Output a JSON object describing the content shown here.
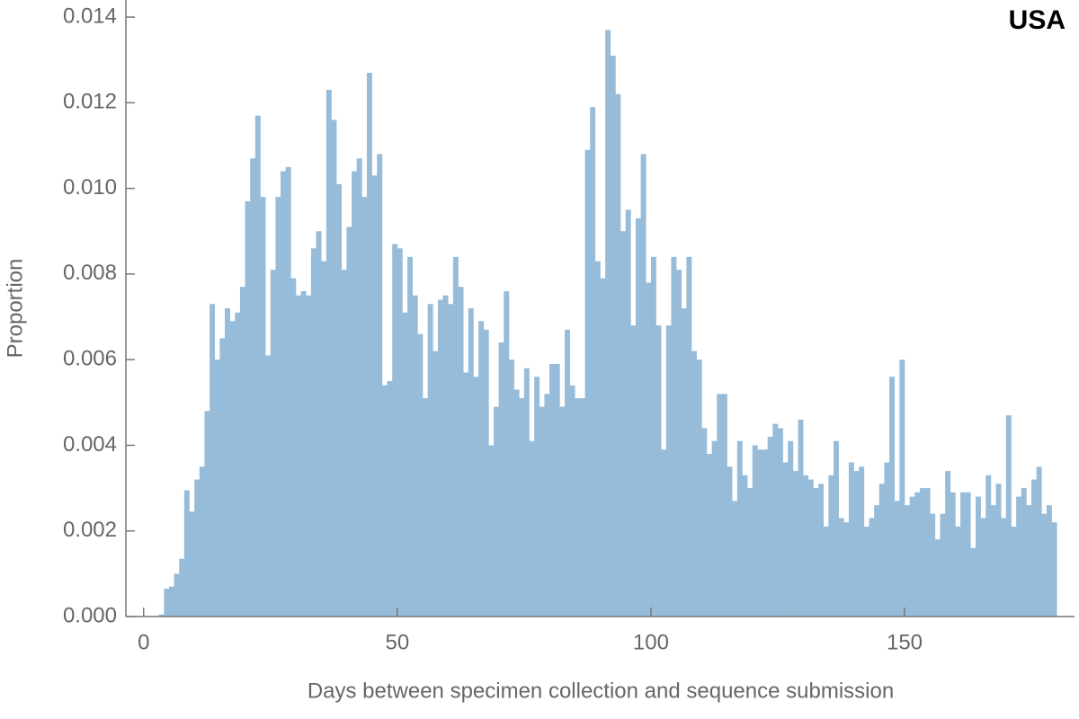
{
  "chart_data": {
    "type": "histogram",
    "title": "USA",
    "x_label": "Days between specimen collection and sequence submission",
    "y_label": "Proportion",
    "color": "#97bcd9",
    "bins": [
      3,
      4,
      5,
      6,
      7,
      8,
      9,
      10,
      11,
      12,
      13,
      14,
      15,
      16,
      17,
      18,
      19,
      20,
      21,
      22,
      23,
      24,
      25,
      26,
      27,
      28,
      29,
      30,
      31,
      32,
      33,
      34,
      35,
      36,
      37,
      38,
      39,
      40,
      41,
      42,
      43,
      44,
      45,
      46,
      47,
      48,
      49,
      50,
      51,
      52,
      53,
      54,
      55,
      56,
      57,
      58,
      59,
      60,
      61,
      62,
      63,
      64,
      65,
      66,
      67,
      68,
      69,
      70,
      71,
      72,
      73,
      74,
      75,
      76,
      77,
      78,
      79,
      80,
      81,
      82,
      83,
      84,
      85,
      86,
      87,
      88,
      89,
      90,
      91,
      92,
      93,
      94,
      95,
      96,
      97,
      98,
      99,
      100,
      101,
      102,
      103,
      104,
      105,
      106,
      107,
      108,
      109,
      110,
      111,
      112,
      113,
      114,
      115,
      116,
      117,
      118,
      119,
      120,
      121,
      122,
      123,
      124,
      125,
      126,
      127,
      128,
      129,
      130,
      131,
      132,
      133,
      134,
      135,
      136,
      137,
      138,
      139,
      140,
      141,
      142,
      143,
      144,
      145,
      146,
      147,
      148,
      149,
      150,
      151,
      152,
      153,
      154,
      155,
      156,
      157,
      158,
      159,
      160,
      161,
      162,
      163,
      164,
      165,
      166,
      167,
      168,
      169,
      170,
      171,
      172,
      173,
      174,
      175,
      176,
      177,
      178,
      179,
      180
    ],
    "values": [
      5e-05,
      0.00065,
      0.0007,
      0.001,
      0.00135,
      0.00295,
      0.00245,
      0.0032,
      0.0035,
      0.0048,
      0.0073,
      0.006,
      0.0065,
      0.0072,
      0.0069,
      0.0071,
      0.0077,
      0.0097,
      0.0107,
      0.0117,
      0.0098,
      0.0061,
      0.0081,
      0.0098,
      0.0104,
      0.0105,
      0.0079,
      0.0075,
      0.0076,
      0.0075,
      0.0086,
      0.009,
      0.0083,
      0.0123,
      0.0116,
      0.0101,
      0.0081,
      0.0091,
      0.0104,
      0.0107,
      0.0098,
      0.0127,
      0.0103,
      0.0108,
      0.0054,
      0.0055,
      0.0087,
      0.0086,
      0.0071,
      0.0084,
      0.0075,
      0.0066,
      0.0051,
      0.0073,
      0.0062,
      0.0074,
      0.0075,
      0.0073,
      0.0084,
      0.0077,
      0.0057,
      0.0072,
      0.0056,
      0.0069,
      0.0067,
      0.004,
      0.0049,
      0.0064,
      0.0076,
      0.006,
      0.0053,
      0.0051,
      0.0058,
      0.0041,
      0.0056,
      0.0049,
      0.0052,
      0.0059,
      0.0059,
      0.0049,
      0.0067,
      0.0054,
      0.0051,
      0.0051,
      0.0109,
      0.0119,
      0.0083,
      0.0079,
      0.0137,
      0.0131,
      0.0122,
      0.009,
      0.0095,
      0.0068,
      0.0093,
      0.0108,
      0.0078,
      0.0084,
      0.0068,
      0.0039,
      0.0068,
      0.0084,
      0.0081,
      0.0072,
      0.0084,
      0.0062,
      0.006,
      0.0044,
      0.0038,
      0.0041,
      0.0052,
      0.0052,
      0.0035,
      0.0027,
      0.0041,
      0.0033,
      0.003,
      0.004,
      0.0039,
      0.0039,
      0.0042,
      0.0045,
      0.0044,
      0.0036,
      0.0041,
      0.0034,
      0.0046,
      0.0033,
      0.0032,
      0.003,
      0.0031,
      0.0021,
      0.0033,
      0.0041,
      0.0023,
      0.0022,
      0.0036,
      0.0034,
      0.0035,
      0.0021,
      0.0023,
      0.0026,
      0.0031,
      0.0036,
      0.0056,
      0.0027,
      0.006,
      0.0026,
      0.0028,
      0.0029,
      0.003,
      0.003,
      0.0024,
      0.0018,
      0.0024,
      0.0034,
      0.0029,
      0.0021,
      0.0029,
      0.0029,
      0.0016,
      0.0028,
      0.0023,
      0.0033,
      0.0026,
      0.0031,
      0.0023,
      0.0047,
      0.0021,
      0.0028,
      0.003,
      0.0026,
      0.0032,
      0.0035,
      0.0024,
      0.0026,
      0.0022
    ],
    "xlim": [
      -3.5,
      183.5
    ],
    "xticks": [
      0,
      50,
      100,
      150
    ],
    "ylim": [
      0,
      0.0144
    ],
    "yticks": [
      {
        "value": 0,
        "label": "0.000"
      },
      {
        "value": 0.002,
        "label": "0.002"
      },
      {
        "value": 0.004,
        "label": "0.004"
      },
      {
        "value": 0.006,
        "label": "0.006"
      },
      {
        "value": 0.008,
        "label": "0.008"
      },
      {
        "value": 0.01,
        "label": "0.010"
      },
      {
        "value": 0.012,
        "label": "0.012"
      },
      {
        "value": 0.014,
        "label": "0.014"
      }
    ]
  }
}
